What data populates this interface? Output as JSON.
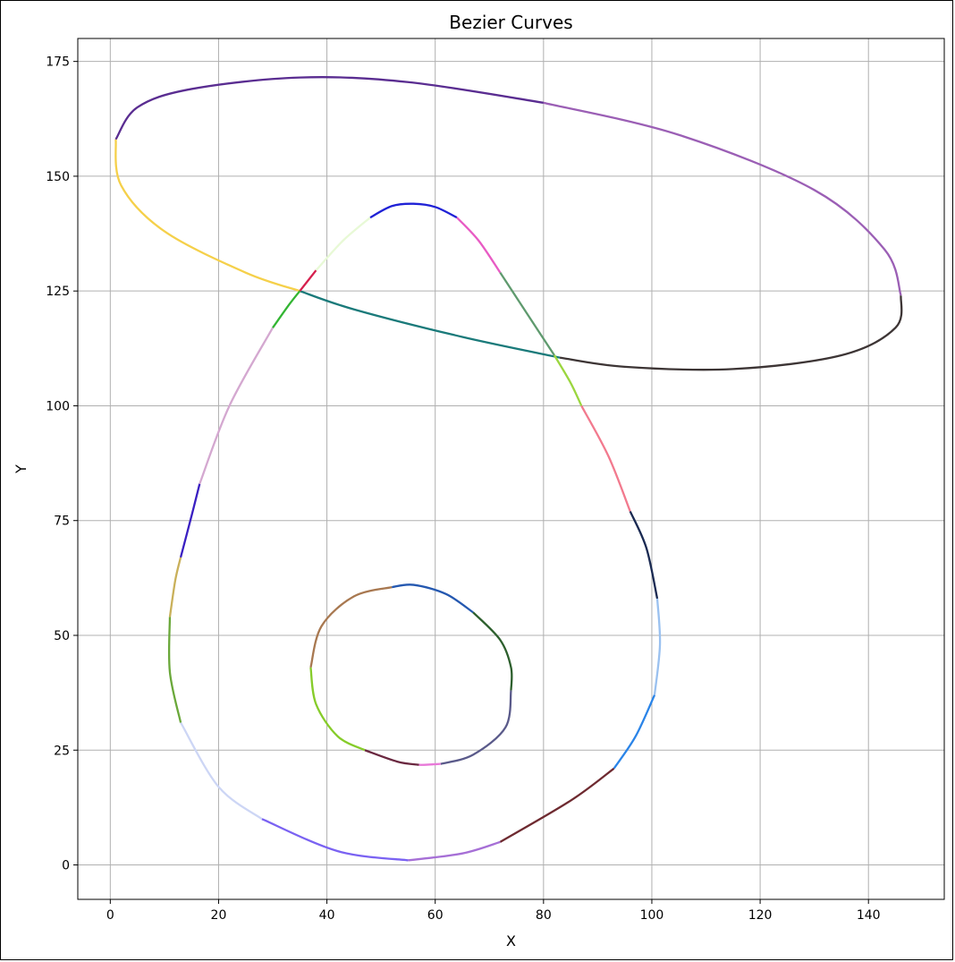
{
  "chart_data": {
    "type": "line",
    "title": "Bezier Curves",
    "xlabel": "X",
    "ylabel": "Y",
    "xlim": [
      -6,
      154
    ],
    "ylim": [
      -7.5,
      180
    ],
    "xticks": [
      0,
      20,
      40,
      60,
      80,
      100,
      120,
      140
    ],
    "yticks": [
      0,
      25,
      50,
      75,
      100,
      125,
      150,
      175
    ],
    "grid": true,
    "legend": "none",
    "series": [
      {
        "color": "#5a2d91",
        "points": [
          [
            1,
            158
          ],
          [
            5,
            165
          ],
          [
            15,
            169
          ],
          [
            35,
            171.5
          ],
          [
            55,
            170.5
          ],
          [
            80,
            166
          ]
        ]
      },
      {
        "color": "#9b5fb5",
        "points": [
          [
            80,
            166
          ],
          [
            105,
            159
          ],
          [
            130,
            147
          ],
          [
            143,
            134
          ],
          [
            146,
            124
          ]
        ]
      },
      {
        "color": "#3d3535",
        "points": [
          [
            146,
            124
          ],
          [
            145,
            117
          ],
          [
            135,
            111
          ],
          [
            115,
            108
          ],
          [
            95,
            108.5
          ],
          [
            83,
            110.5
          ]
        ]
      },
      {
        "color": "#1a7a7a",
        "points": [
          [
            83,
            110.5
          ],
          [
            65,
            115
          ],
          [
            45,
            121
          ],
          [
            35,
            125
          ]
        ]
      },
      {
        "color": "#f5d04a",
        "points": [
          [
            1,
            158
          ],
          [
            2,
            148
          ],
          [
            10,
            138
          ],
          [
            25,
            129
          ],
          [
            35,
            125
          ]
        ]
      },
      {
        "color": "#d6204e",
        "points": [
          [
            35,
            125
          ],
          [
            38,
            129.5
          ]
        ]
      },
      {
        "color": "#e8f9d6",
        "points": [
          [
            38,
            129.5
          ],
          [
            43,
            136
          ],
          [
            48,
            141
          ]
        ]
      },
      {
        "color": "#1f21d6",
        "points": [
          [
            48,
            141
          ],
          [
            52,
            143.5
          ],
          [
            56,
            144
          ],
          [
            60,
            143.3
          ],
          [
            64,
            141
          ]
        ]
      },
      {
        "color": "#e85bc4",
        "points": [
          [
            64,
            141
          ],
          [
            68,
            136
          ],
          [
            72,
            129
          ]
        ]
      },
      {
        "color": "#5f9a6e",
        "points": [
          [
            72,
            129
          ],
          [
            77,
            120
          ],
          [
            82,
            111
          ]
        ]
      },
      {
        "color": "#9bd63f",
        "points": [
          [
            82,
            111
          ],
          [
            85,
            105
          ],
          [
            87,
            100
          ]
        ]
      },
      {
        "color": "#f27a8e",
        "points": [
          [
            87,
            100
          ],
          [
            92,
            89
          ],
          [
            96,
            77
          ]
        ]
      },
      {
        "color": "#1a2a52",
        "points": [
          [
            96,
            77
          ],
          [
            99,
            69
          ],
          [
            101,
            58
          ]
        ]
      },
      {
        "color": "#9ac1f0",
        "points": [
          [
            101,
            58
          ],
          [
            101.5,
            48
          ],
          [
            100.5,
            37
          ]
        ]
      },
      {
        "color": "#2a84e8",
        "points": [
          [
            100.5,
            37
          ],
          [
            97,
            28
          ],
          [
            93,
            21
          ]
        ]
      },
      {
        "color": "#6e2a30",
        "points": [
          [
            93,
            21
          ],
          [
            85,
            14
          ],
          [
            72,
            5
          ]
        ]
      },
      {
        "color": "#a66fd6",
        "points": [
          [
            72,
            5
          ],
          [
            65,
            2.5
          ],
          [
            55,
            1
          ]
        ]
      },
      {
        "color": "#7a62f2",
        "points": [
          [
            55,
            1
          ],
          [
            42,
            3
          ],
          [
            28,
            10
          ]
        ]
      },
      {
        "color": "#cdd6f5",
        "points": [
          [
            28,
            10
          ],
          [
            20,
            17
          ],
          [
            13,
            31
          ]
        ]
      },
      {
        "color": "#6aa83a",
        "points": [
          [
            13,
            31
          ],
          [
            11,
            42
          ],
          [
            11,
            54
          ]
        ]
      },
      {
        "color": "#c9b05a",
        "points": [
          [
            11,
            54
          ],
          [
            12,
            62
          ],
          [
            13,
            67
          ]
        ]
      },
      {
        "color": "#3a1fc2",
        "points": [
          [
            13,
            67
          ],
          [
            15,
            76
          ],
          [
            16.5,
            83
          ]
        ]
      },
      {
        "color": "#d4a8d0",
        "points": [
          [
            16.5,
            83
          ],
          [
            22,
            100
          ],
          [
            30,
            117
          ]
        ]
      },
      {
        "color": "#33b533",
        "points": [
          [
            30,
            117
          ],
          [
            33,
            122
          ],
          [
            35,
            125
          ]
        ]
      },
      {
        "color": "#a87850",
        "points": [
          [
            52,
            60.5
          ],
          [
            45,
            58.5
          ],
          [
            39,
            52
          ],
          [
            37,
            43
          ]
        ]
      },
      {
        "color": "#2458b0",
        "points": [
          [
            52,
            60.5
          ],
          [
            56,
            61
          ],
          [
            62,
            59
          ],
          [
            67,
            55
          ]
        ]
      },
      {
        "color": "#2d5f2d",
        "points": [
          [
            67,
            55
          ],
          [
            72,
            49
          ],
          [
            74,
            43
          ],
          [
            74,
            38
          ]
        ]
      },
      {
        "color": "#5a5a8a",
        "points": [
          [
            74,
            38
          ],
          [
            73,
            30
          ],
          [
            67,
            24
          ],
          [
            61,
            22
          ]
        ]
      },
      {
        "color": "#e878d8",
        "points": [
          [
            61,
            22
          ],
          [
            58,
            21.8
          ],
          [
            57,
            21.8
          ]
        ]
      },
      {
        "color": "#6a2840",
        "points": [
          [
            57,
            21.8
          ],
          [
            53,
            22.5
          ],
          [
            47,
            25
          ]
        ]
      },
      {
        "color": "#86cc2a",
        "points": [
          [
            47,
            25
          ],
          [
            42,
            28
          ],
          [
            38,
            35
          ],
          [
            37,
            43
          ]
        ]
      }
    ]
  }
}
